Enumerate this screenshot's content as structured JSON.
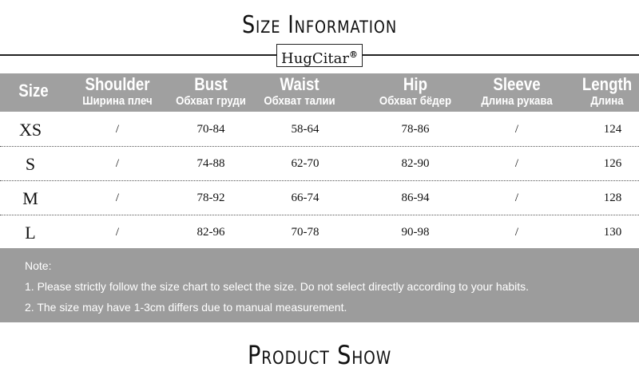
{
  "title": "Size Information",
  "brand": "HugCitar",
  "brand_mark": "®",
  "columns": [
    {
      "en": "Size",
      "ru": ""
    },
    {
      "en": "Shoulder",
      "ru": "Ширина плеч"
    },
    {
      "en": "Bust",
      "ru": "Обхват груди"
    },
    {
      "en": "Waist",
      "ru": "Обхват талии"
    },
    {
      "en": "Hip",
      "ru": "Обхват бёдер"
    },
    {
      "en": "Sleeve",
      "ru": "Длина рукава"
    },
    {
      "en": "Length",
      "ru": "Длина"
    }
  ],
  "rows": [
    [
      "XS",
      "/",
      "70-84",
      "58-64",
      "78-86",
      "/",
      "124"
    ],
    [
      "S",
      "/",
      "74-88",
      "62-70",
      "82-90",
      "/",
      "126"
    ],
    [
      "M",
      "/",
      "78-92",
      "66-74",
      "86-94",
      "/",
      "128"
    ],
    [
      "L",
      "/",
      "82-96",
      "70-78",
      "90-98",
      "/",
      "130"
    ]
  ],
  "note": {
    "label": "Note:",
    "lines": [
      "1. Please strictly follow the size chart to select the size. Do not select directly according to your habits.",
      "2. The size may have 1-3cm differs due to manual measurement."
    ]
  },
  "section2_title": "Product Show",
  "colors": {
    "header_bg": "#a0a0a0",
    "note_bg": "#9c9c9c"
  }
}
